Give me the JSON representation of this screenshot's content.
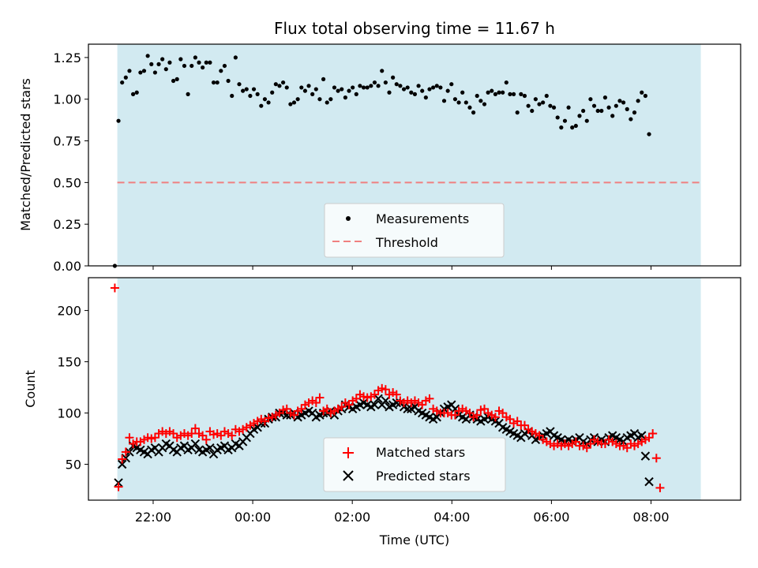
{
  "title": "Flux total observing time = 11.67 h",
  "xlabel": "Time (UTC)",
  "x_tick_labels": [
    "22:00",
    "00:00",
    "02:00",
    "04:00",
    "06:00",
    "08:00"
  ],
  "colors": {
    "night_shade": "#add8e6",
    "measurements": "#000000",
    "threshold": "#f08080",
    "matched": "#ff0000",
    "predicted": "#000000"
  },
  "chart_data": [
    {
      "type": "scatter",
      "panel": "top",
      "ylabel": "Matched/Predicted stars",
      "ylim": [
        0,
        1.33
      ],
      "yticks": [
        "0.00",
        "0.25",
        "0.50",
        "0.75",
        "1.00",
        "1.25"
      ],
      "xlim_hours": [
        20.7,
        33.8
      ],
      "shaded_region_hours": [
        21.28,
        33.0
      ],
      "threshold": {
        "name": "Threshold",
        "value": 0.5
      },
      "legend": {
        "placement": "lower-center",
        "entries": [
          "Measurements",
          "Threshold"
        ]
      },
      "series": [
        {
          "name": "Measurements",
          "x_start_hours": 21.23,
          "x_step_hours": 0.0735,
          "values": [
            0.0,
            0.87,
            1.1,
            1.13,
            1.17,
            1.03,
            1.04,
            1.16,
            1.17,
            1.26,
            1.21,
            1.16,
            1.21,
            1.24,
            1.18,
            1.22,
            1.11,
            1.12,
            1.24,
            1.2,
            1.03,
            1.2,
            1.25,
            1.22,
            1.19,
            1.22,
            1.22,
            1.1,
            1.1,
            1.17,
            1.2,
            1.11,
            1.02,
            1.25,
            1.09,
            1.05,
            1.06,
            1.02,
            1.06,
            1.03,
            0.96,
            1.0,
            0.98,
            1.04,
            1.09,
            1.08,
            1.1,
            1.07,
            0.97,
            0.98,
            1.0,
            1.07,
            1.05,
            1.08,
            1.03,
            1.06,
            1.0,
            1.12,
            0.98,
            1.0,
            1.07,
            1.05,
            1.06,
            1.01,
            1.05,
            1.07,
            1.03,
            1.08,
            1.07,
            1.07,
            1.08,
            1.1,
            1.08,
            1.17,
            1.1,
            1.04,
            1.13,
            1.09,
            1.08,
            1.06,
            1.07,
            1.04,
            1.03,
            1.08,
            1.05,
            1.01,
            1.06,
            1.07,
            1.08,
            1.07,
            0.99,
            1.05,
            1.09,
            1.0,
            0.98,
            1.04,
            0.98,
            0.95,
            0.92,
            1.02,
            0.99,
            0.97,
            1.04,
            1.05,
            1.03,
            1.04,
            1.04,
            1.1,
            1.03,
            1.03,
            0.92,
            1.03,
            1.02,
            0.96,
            0.93,
            1.0,
            0.97,
            0.98,
            1.02,
            0.96,
            0.95,
            0.89,
            0.83,
            0.87,
            0.95,
            0.83,
            0.84,
            0.9,
            0.93,
            0.87,
            1.0,
            0.96,
            0.93,
            0.93,
            1.01,
            0.95,
            0.9,
            0.96,
            0.99,
            0.98,
            0.94,
            0.88,
            0.92,
            0.99,
            1.04,
            1.02,
            0.79
          ]
        }
      ]
    },
    {
      "type": "scatter",
      "panel": "bottom",
      "ylabel": "Count",
      "ylim": [
        15,
        232
      ],
      "yticks": [
        "50",
        "100",
        "150",
        "200"
      ],
      "xlim_hours": [
        20.7,
        33.8
      ],
      "shaded_region_hours": [
        21.28,
        33.0
      ],
      "legend": {
        "placement": "lower-center",
        "entries": [
          "Matched stars",
          "Predicted stars"
        ]
      },
      "series": [
        {
          "name": "Matched stars",
          "x_start_hours": 21.23,
          "x_step_hours": 0.0735,
          "values": [
            222,
            28,
            55,
            62,
            76,
            70,
            72,
            72,
            74,
            76,
            75,
            76,
            80,
            82,
            80,
            82,
            80,
            76,
            78,
            80,
            78,
            80,
            85,
            80,
            78,
            74,
            82,
            79,
            80,
            78,
            82,
            80,
            78,
            84,
            82,
            84,
            86,
            88,
            90,
            92,
            94,
            92,
            95,
            96,
            98,
            100,
            103,
            104,
            100,
            98,
            102,
            104,
            108,
            110,
            112,
            110,
            115,
            102,
            104,
            100,
            102,
            104,
            106,
            110,
            108,
            112,
            114,
            118,
            116,
            115,
            116,
            118,
            122,
            124,
            123,
            118,
            120,
            118,
            112,
            110,
            112,
            110,
            112,
            110,
            108,
            112,
            114,
            104,
            102,
            100,
            100,
            100,
            98,
            98,
            102,
            104,
            102,
            100,
            96,
            98,
            103,
            104,
            100,
            98,
            96,
            102,
            100,
            96,
            94,
            90,
            92,
            88,
            88,
            84,
            82,
            80,
            78,
            74,
            72,
            70,
            68,
            70,
            68,
            70,
            68,
            70,
            72,
            68,
            68,
            66,
            70,
            74,
            72,
            70,
            70,
            74,
            72,
            70,
            68,
            68,
            66,
            70,
            68,
            70,
            72,
            74,
            76,
            80,
            56,
            27
          ]
        },
        {
          "name": "Predicted stars",
          "x_start_hours": 21.23,
          "x_step_hours": 0.0735,
          "values": [
            null,
            32,
            50,
            56,
            62,
            68,
            66,
            64,
            62,
            60,
            64,
            66,
            62,
            66,
            70,
            68,
            64,
            62,
            66,
            68,
            64,
            66,
            70,
            64,
            62,
            64,
            66,
            60,
            64,
            66,
            68,
            64,
            66,
            70,
            68,
            72,
            76,
            80,
            84,
            86,
            90,
            90,
            94,
            96,
            96,
            100,
            100,
            98,
            98,
            100,
            96,
            98,
            100,
            102,
            100,
            96,
            98,
            100,
            100,
            102,
            98,
            102,
            104,
            108,
            106,
            104,
            106,
            108,
            110,
            108,
            106,
            108,
            114,
            108,
            112,
            106,
            108,
            110,
            110,
            106,
            104,
            104,
            106,
            102,
            100,
            98,
            96,
            94,
            96,
            100,
            104,
            106,
            108,
            104,
            98,
            96,
            94,
            98,
            96,
            94,
            92,
            94,
            96,
            94,
            92,
            90,
            86,
            84,
            82,
            80,
            78,
            76,
            80,
            82,
            78,
            74,
            76,
            78,
            80,
            82,
            78,
            76,
            74,
            72,
            74,
            72,
            74,
            76,
            72,
            70,
            74,
            76,
            72,
            74,
            72,
            76,
            78,
            76,
            74,
            72,
            76,
            78,
            80,
            76,
            78,
            58,
            33
          ]
        }
      ]
    }
  ]
}
